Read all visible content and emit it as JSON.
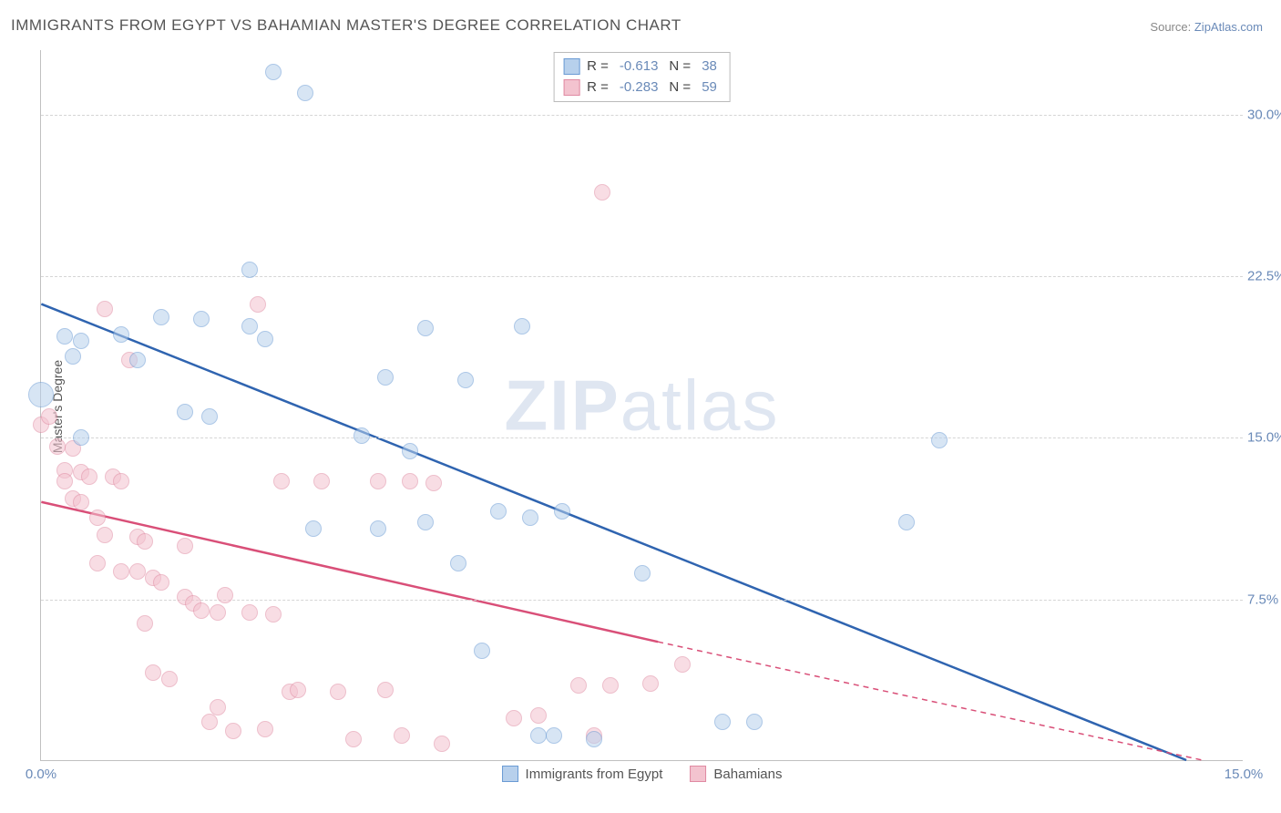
{
  "title": "IMMIGRANTS FROM EGYPT VS BAHAMIAN MASTER'S DEGREE CORRELATION CHART",
  "source_label": "Source:",
  "source_name": "ZipAtlas.com",
  "y_axis_label": "Master's Degree",
  "watermark": {
    "bold": "ZIP",
    "rest": "atlas"
  },
  "chart": {
    "type": "scatter",
    "background_color": "#ffffff",
    "grid_color": "#d5d5d5",
    "axis_color": "#c0c0c0",
    "tick_color": "#6a8ab8",
    "xlim": [
      0.0,
      15.0
    ],
    "ylim": [
      0.0,
      33.0
    ],
    "x_ticks": [
      0.0,
      15.0
    ],
    "x_tick_labels": [
      "0.0%",
      "15.0%"
    ],
    "y_ticks": [
      7.5,
      15.0,
      22.5,
      30.0
    ],
    "y_tick_labels": [
      "7.5%",
      "15.0%",
      "22.5%",
      "30.0%"
    ],
    "title_fontsize": 17,
    "tick_fontsize": 15,
    "label_fontsize": 14
  },
  "series": [
    {
      "name": "Immigrants from Egypt",
      "key": "egypt",
      "fill_color": "#b7d0ec",
      "stroke_color": "#6a9bd4",
      "line_color": "#2f64b0",
      "fill_opacity": 0.55,
      "marker_radius": 9,
      "r_value": "-0.613",
      "n_value": "38",
      "trend": {
        "x1": 0.0,
        "y1": 21.2,
        "x2": 14.3,
        "y2": 0.0
      },
      "points": [
        {
          "x": 0.0,
          "y": 17.0,
          "r": 14
        },
        {
          "x": 0.3,
          "y": 19.7
        },
        {
          "x": 0.5,
          "y": 19.5
        },
        {
          "x": 0.4,
          "y": 18.8
        },
        {
          "x": 1.0,
          "y": 19.8
        },
        {
          "x": 1.2,
          "y": 18.6
        },
        {
          "x": 1.5,
          "y": 20.6
        },
        {
          "x": 2.0,
          "y": 20.5
        },
        {
          "x": 2.6,
          "y": 20.2
        },
        {
          "x": 2.9,
          "y": 32.0
        },
        {
          "x": 3.3,
          "y": 31.0
        },
        {
          "x": 2.6,
          "y": 22.8
        },
        {
          "x": 2.8,
          "y": 19.6
        },
        {
          "x": 1.8,
          "y": 16.2
        },
        {
          "x": 2.1,
          "y": 16.0
        },
        {
          "x": 0.5,
          "y": 15.0
        },
        {
          "x": 3.4,
          "y": 10.8
        },
        {
          "x": 4.0,
          "y": 15.1
        },
        {
          "x": 4.2,
          "y": 10.8
        },
        {
          "x": 4.3,
          "y": 17.8
        },
        {
          "x": 4.8,
          "y": 20.1
        },
        {
          "x": 4.6,
          "y": 14.4
        },
        {
          "x": 4.8,
          "y": 11.1
        },
        {
          "x": 5.2,
          "y": 9.2
        },
        {
          "x": 5.3,
          "y": 17.7
        },
        {
          "x": 5.5,
          "y": 5.1
        },
        {
          "x": 5.7,
          "y": 11.6
        },
        {
          "x": 6.0,
          "y": 20.2
        },
        {
          "x": 6.1,
          "y": 11.3
        },
        {
          "x": 6.2,
          "y": 1.2
        },
        {
          "x": 6.4,
          "y": 1.2
        },
        {
          "x": 6.5,
          "y": 11.6
        },
        {
          "x": 6.9,
          "y": 1.0
        },
        {
          "x": 7.5,
          "y": 8.7
        },
        {
          "x": 8.5,
          "y": 1.8
        },
        {
          "x": 8.9,
          "y": 1.8
        },
        {
          "x": 10.8,
          "y": 11.1
        },
        {
          "x": 11.2,
          "y": 14.9
        }
      ]
    },
    {
      "name": "Bahamians",
      "key": "bahamians",
      "fill_color": "#f3c3cf",
      "stroke_color": "#e08aa2",
      "line_color": "#d94f78",
      "fill_opacity": 0.55,
      "marker_radius": 9,
      "r_value": "-0.283",
      "n_value": "59",
      "trend": {
        "x1": 0.0,
        "y1": 12.0,
        "x2": 7.7,
        "y2": 5.5
      },
      "trend_extend": {
        "x1": 7.7,
        "y1": 5.5,
        "x2": 14.5,
        "y2": 0.0
      },
      "points": [
        {
          "x": 0.0,
          "y": 15.6
        },
        {
          "x": 0.1,
          "y": 16.0
        },
        {
          "x": 0.2,
          "y": 14.6
        },
        {
          "x": 0.3,
          "y": 13.5
        },
        {
          "x": 0.3,
          "y": 13.0
        },
        {
          "x": 0.4,
          "y": 12.2
        },
        {
          "x": 0.4,
          "y": 14.5
        },
        {
          "x": 0.5,
          "y": 13.4
        },
        {
          "x": 0.5,
          "y": 12.0
        },
        {
          "x": 0.6,
          "y": 13.2
        },
        {
          "x": 0.7,
          "y": 11.3
        },
        {
          "x": 0.7,
          "y": 9.2
        },
        {
          "x": 0.8,
          "y": 10.5
        },
        {
          "x": 0.8,
          "y": 21.0
        },
        {
          "x": 0.9,
          "y": 13.2
        },
        {
          "x": 1.0,
          "y": 13.0
        },
        {
          "x": 1.0,
          "y": 8.8
        },
        {
          "x": 1.1,
          "y": 18.6
        },
        {
          "x": 1.2,
          "y": 10.4
        },
        {
          "x": 1.2,
          "y": 8.8
        },
        {
          "x": 1.3,
          "y": 6.4
        },
        {
          "x": 1.3,
          "y": 10.2
        },
        {
          "x": 1.4,
          "y": 8.5
        },
        {
          "x": 1.4,
          "y": 4.1
        },
        {
          "x": 1.5,
          "y": 8.3
        },
        {
          "x": 1.6,
          "y": 3.8
        },
        {
          "x": 1.8,
          "y": 10.0
        },
        {
          "x": 1.8,
          "y": 7.6
        },
        {
          "x": 1.9,
          "y": 7.3
        },
        {
          "x": 2.0,
          "y": 7.0
        },
        {
          "x": 2.1,
          "y": 1.8
        },
        {
          "x": 2.2,
          "y": 2.5
        },
        {
          "x": 2.2,
          "y": 6.9
        },
        {
          "x": 2.3,
          "y": 7.7
        },
        {
          "x": 2.4,
          "y": 1.4
        },
        {
          "x": 2.6,
          "y": 6.9
        },
        {
          "x": 2.7,
          "y": 21.2
        },
        {
          "x": 2.8,
          "y": 1.5
        },
        {
          "x": 2.9,
          "y": 6.8
        },
        {
          "x": 3.0,
          "y": 13.0
        },
        {
          "x": 3.1,
          "y": 3.2
        },
        {
          "x": 3.2,
          "y": 3.3
        },
        {
          "x": 3.5,
          "y": 13.0
        },
        {
          "x": 3.7,
          "y": 3.2
        },
        {
          "x": 3.9,
          "y": 1.0
        },
        {
          "x": 4.2,
          "y": 13.0
        },
        {
          "x": 4.3,
          "y": 3.3
        },
        {
          "x": 4.5,
          "y": 1.2
        },
        {
          "x": 4.6,
          "y": 13.0
        },
        {
          "x": 4.9,
          "y": 12.9
        },
        {
          "x": 5.0,
          "y": 0.8
        },
        {
          "x": 5.9,
          "y": 2.0
        },
        {
          "x": 6.2,
          "y": 2.1
        },
        {
          "x": 6.7,
          "y": 3.5
        },
        {
          "x": 6.9,
          "y": 1.2
        },
        {
          "x": 7.0,
          "y": 26.4
        },
        {
          "x": 7.1,
          "y": 3.5
        },
        {
          "x": 7.6,
          "y": 3.6
        },
        {
          "x": 8.0,
          "y": 4.5
        }
      ]
    }
  ],
  "legend": {
    "r_label": "R =",
    "n_label": "N ="
  },
  "bottom_legend_labels": [
    "Immigrants from Egypt",
    "Bahamians"
  ]
}
